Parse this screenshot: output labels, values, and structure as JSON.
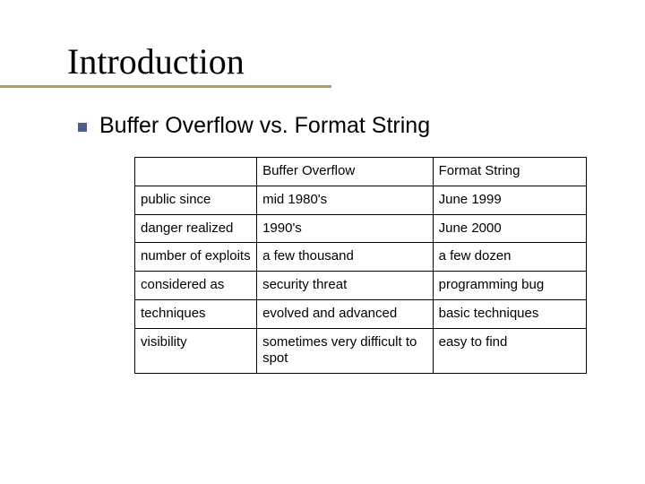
{
  "title": "Introduction",
  "subtitle": "Buffer Overflow vs. Format String",
  "accent_color": "#b0a060",
  "bullet_color": "#4a5f8a",
  "table": {
    "columns": [
      "",
      "Buffer Overflow",
      "Format String"
    ],
    "column_widths_pct": [
      27,
      39,
      34
    ],
    "rows": [
      [
        "public since",
        "mid 1980's",
        "June 1999"
      ],
      [
        "danger realized",
        "1990's",
        "June 2000"
      ],
      [
        "number of exploits",
        "a few thousand",
        "a few dozen"
      ],
      [
        "considered as",
        "security threat",
        "programming bug"
      ],
      [
        "techniques",
        "evolved and advanced",
        "basic techniques"
      ],
      [
        "visibility",
        "sometimes very difficult to spot",
        "easy to find"
      ]
    ],
    "border_color": "#000000",
    "font_size_pt": 11,
    "header_font_size_pt": 11,
    "cell_text_color": "#000000",
    "background_color": "#ffffff"
  }
}
